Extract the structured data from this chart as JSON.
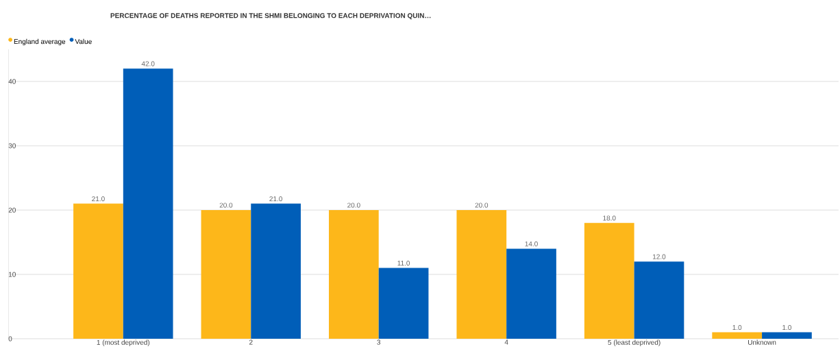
{
  "chart_data": {
    "type": "bar",
    "title": "PERCENTAGE OF DEATHS REPORTED IN THE SHMI BELONGING TO EACH DEPRIVATION QUIN…",
    "categories": [
      "1 (most deprived)",
      "2",
      "3",
      "4",
      "5 (least deprived)",
      "Unknown"
    ],
    "series": [
      {
        "name": "England average",
        "color": "#fdb71a",
        "values": [
          21,
          20,
          20,
          20,
          18,
          1
        ],
        "value_labels": [
          "21.0",
          "20.0",
          "20.0",
          "20.0",
          "18.0",
          "1.0"
        ]
      },
      {
        "name": "Value",
        "color": "#005eb8",
        "values": [
          42,
          21,
          11,
          14,
          12,
          1
        ],
        "value_labels": [
          "42.0",
          "21.0",
          "11.0",
          "14.0",
          "12.0",
          "1.0"
        ]
      }
    ],
    "ylim": [
      0,
      45
    ],
    "yticks": [
      0,
      10,
      20,
      30,
      40
    ],
    "grid": "y",
    "legend": "top left"
  }
}
